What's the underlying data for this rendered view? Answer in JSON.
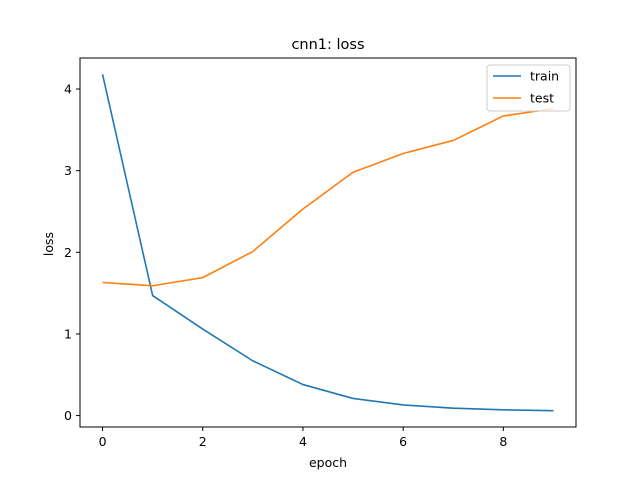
{
  "chart_data": {
    "type": "line",
    "title": "cnn1: loss",
    "xlabel": "epoch",
    "ylabel": "loss",
    "x": [
      0,
      1,
      2,
      3,
      4,
      5,
      6,
      7,
      8,
      9
    ],
    "xlim": [
      -0.45,
      9.45
    ],
    "ylim": [
      -0.14,
      4.38
    ],
    "xticks": [
      0,
      2,
      4,
      6,
      8
    ],
    "yticks": [
      0,
      1,
      2,
      3,
      4
    ],
    "grid": false,
    "legend_position": "top-right",
    "series": [
      {
        "name": "train",
        "color": "#1f77b4",
        "values": [
          4.18,
          1.47,
          1.06,
          0.67,
          0.38,
          0.21,
          0.13,
          0.09,
          0.07,
          0.06
        ]
      },
      {
        "name": "test",
        "color": "#ff7f0e",
        "values": [
          1.63,
          1.59,
          1.69,
          2.01,
          2.53,
          2.98,
          3.21,
          3.37,
          3.67,
          3.76
        ]
      }
    ]
  }
}
